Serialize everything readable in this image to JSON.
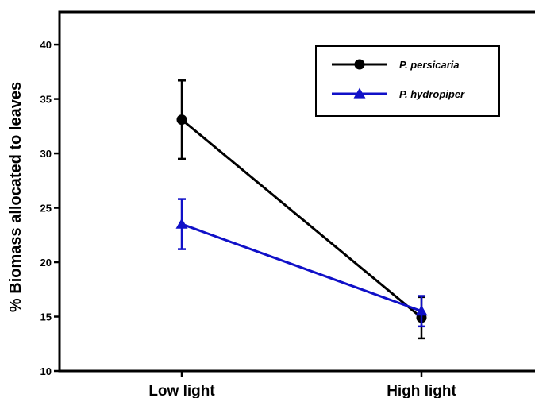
{
  "chart_data": {
    "type": "line",
    "title": "",
    "xlabel": "",
    "ylabel": "% Biomass allocated to leaves",
    "categories": [
      "Low light",
      "High light"
    ],
    "ylim": [
      10,
      43
    ],
    "yticks": [
      10,
      15,
      20,
      25,
      30,
      35,
      40
    ],
    "grid": false,
    "legend_position": "top-right",
    "series": [
      {
        "name": "P. persicaria",
        "values": [
          33.1,
          14.9
        ],
        "errors": [
          3.6,
          1.9
        ],
        "color": "#000000",
        "marker": "circle"
      },
      {
        "name": "P. hydropiper",
        "values": [
          23.5,
          15.5
        ],
        "errors": [
          2.3,
          1.4
        ],
        "color": "#1010c8",
        "marker": "triangle"
      }
    ]
  }
}
